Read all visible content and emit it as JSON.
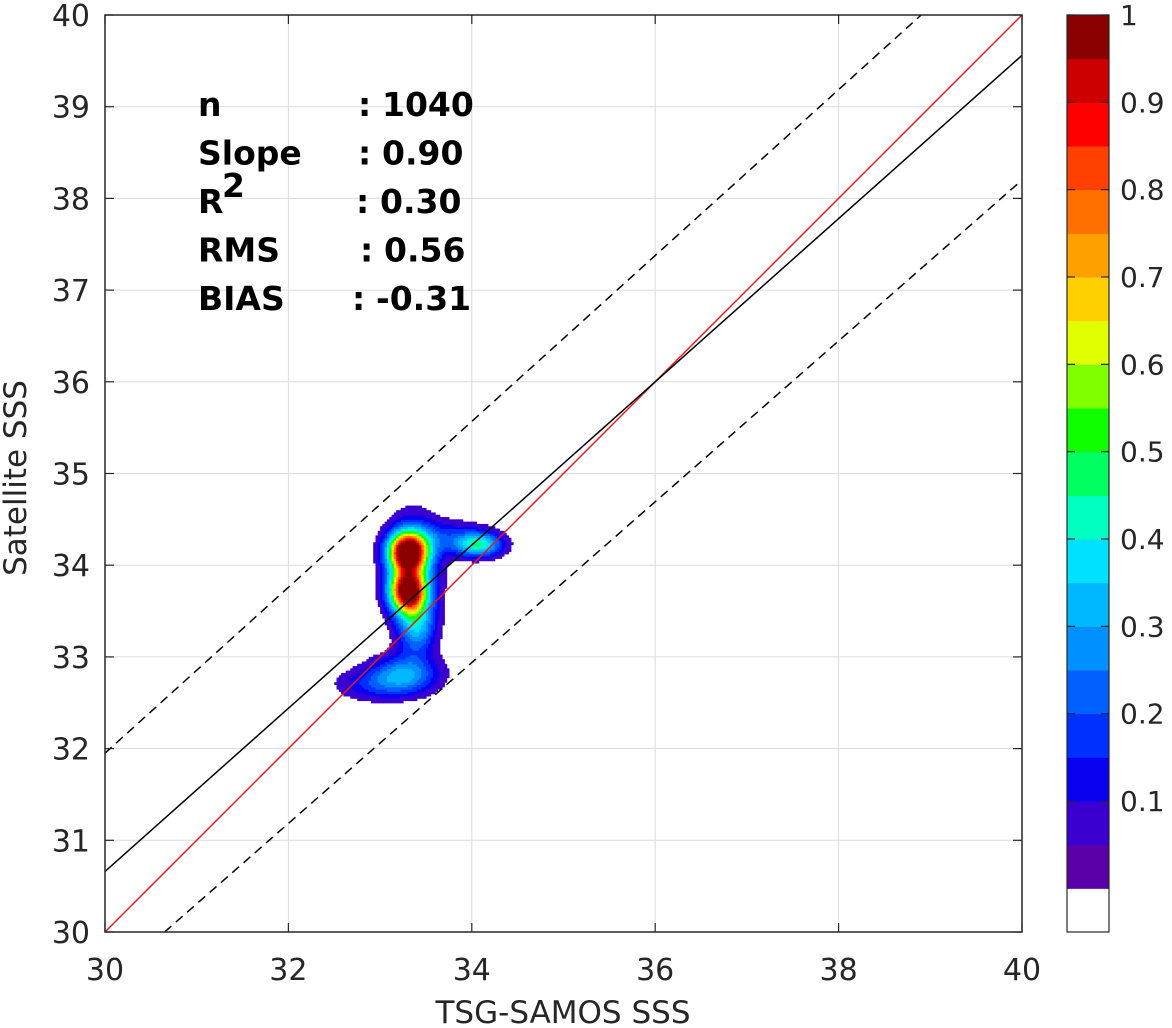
{
  "chart_data": {
    "type": "contour",
    "xlabel": "TSG-SAMOS SSS",
    "ylabel": "Satellite SSS",
    "xlim": [
      30,
      40
    ],
    "ylim": [
      30,
      40
    ],
    "xticks": [
      "30",
      "32",
      "34",
      "36",
      "38",
      "40"
    ],
    "yticks": [
      "30",
      "31",
      "32",
      "33",
      "34",
      "35",
      "36",
      "37",
      "38",
      "39",
      "40"
    ],
    "grid": true,
    "stats": [
      {
        "label": "n",
        "sep": ":",
        "value": "1040"
      },
      {
        "label": "Slope",
        "sep": ":",
        "value": "0.90"
      },
      {
        "label": "R",
        "sup": "2",
        "sep": ":",
        "value": "0.30"
      },
      {
        "label": "RMS",
        "sep": ":",
        "value": "0.56"
      },
      {
        "label": "BIAS",
        "sep": ":",
        "value": "-0.31"
      }
    ],
    "lines": [
      {
        "role": "one-to-one",
        "color": "#e41a1c",
        "points": [
          [
            30,
            30
          ],
          [
            40,
            40
          ]
        ]
      },
      {
        "role": "regression",
        "color": "#000000",
        "points": [
          [
            30,
            30.66
          ],
          [
            40,
            39.56
          ]
        ]
      },
      {
        "role": "upper-bound",
        "color": "#000000",
        "dashed": true,
        "points": [
          [
            30,
            31.95
          ],
          [
            38.9,
            40
          ]
        ]
      },
      {
        "role": "lower-bound",
        "color": "#000000",
        "dashed": true,
        "points": [
          [
            30.65,
            30
          ],
          [
            40,
            38.2
          ]
        ]
      }
    ],
    "density_blobs": [
      {
        "x": 33.3,
        "y": 34.15,
        "sx": 0.14,
        "sy": 0.14,
        "a": 0.98
      },
      {
        "x": 33.3,
        "y": 33.72,
        "sx": 0.13,
        "sy": 0.15,
        "a": 0.9
      },
      {
        "x": 33.35,
        "y": 33.95,
        "sx": 0.18,
        "sy": 0.35,
        "a": 0.35
      },
      {
        "x": 33.4,
        "y": 33.35,
        "sx": 0.14,
        "sy": 0.22,
        "a": 0.3
      },
      {
        "x": 33.27,
        "y": 32.82,
        "sx": 0.25,
        "sy": 0.14,
        "a": 0.28
      },
      {
        "x": 32.95,
        "y": 32.7,
        "sx": 0.3,
        "sy": 0.12,
        "a": 0.14
      },
      {
        "x": 34.08,
        "y": 34.23,
        "sx": 0.17,
        "sy": 0.09,
        "a": 0.4
      },
      {
        "x": 33.7,
        "y": 34.3,
        "sx": 0.3,
        "sy": 0.13,
        "a": 0.16
      }
    ],
    "colorbar": {
      "range": [
        0,
        1
      ],
      "levels": 20,
      "ticks": [
        "0.1",
        "0.2",
        "0.3",
        "0.4",
        "0.5",
        "0.6",
        "0.7",
        "0.8",
        "0.9",
        "1"
      ],
      "colors": [
        "#ffffff",
        "#5a00a8",
        "#3b00d0",
        "#0a00f0",
        "#0030ff",
        "#0060ff",
        "#0090ff",
        "#00b8ff",
        "#00e0ff",
        "#00ffc0",
        "#00ff60",
        "#10ff00",
        "#80ff00",
        "#e0ff00",
        "#ffd000",
        "#ffa000",
        "#ff7000",
        "#ff4000",
        "#ff0000",
        "#cc0000",
        "#8b0000"
      ]
    }
  }
}
